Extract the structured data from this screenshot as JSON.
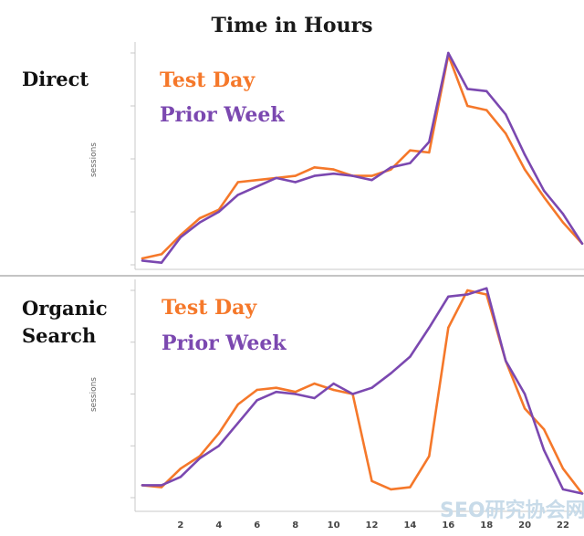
{
  "title": "Time in Hours",
  "colors": {
    "test_day": "#f5782a",
    "prior_week": "#7b48b0",
    "axis": "#c8c8c8",
    "divider": "#b0b0b0"
  },
  "watermark": "SEO研究协会网",
  "chart_data": [
    {
      "type": "line",
      "panel_label": [
        "Direct"
      ],
      "ylabel": "sessions",
      "xlabel": "",
      "xlim": [
        0,
        23
      ],
      "ylim": [
        0,
        100
      ],
      "x": [
        0,
        1,
        2,
        3,
        4,
        5,
        6,
        7,
        8,
        9,
        10,
        11,
        12,
        13,
        14,
        15,
        16,
        17,
        18,
        19,
        20,
        21,
        22,
        23
      ],
      "x_ticks": [
        2,
        4,
        6,
        8,
        10,
        12,
        14,
        16,
        18,
        20,
        22
      ],
      "series": [
        {
          "name": "Test Day",
          "values": [
            3,
            5,
            14,
            22,
            26,
            39,
            40,
            41,
            42,
            46,
            45,
            42,
            42,
            45,
            54,
            53,
            99,
            75,
            73,
            62,
            45,
            32,
            20,
            10
          ]
        },
        {
          "name": "Prior Week",
          "values": [
            2,
            1,
            13,
            20,
            25,
            33,
            37,
            41,
            39,
            42,
            43,
            42,
            40,
            46,
            48,
            58,
            100,
            83,
            82,
            71,
            52,
            35,
            24,
            10
          ]
        }
      ]
    },
    {
      "type": "line",
      "panel_label": [
        "Organic",
        "Search"
      ],
      "ylabel": "sessions",
      "xlabel": "",
      "xlim": [
        0,
        23
      ],
      "ylim": [
        0,
        100
      ],
      "x": [
        0,
        1,
        2,
        3,
        4,
        5,
        6,
        7,
        8,
        9,
        10,
        11,
        12,
        13,
        14,
        15,
        16,
        17,
        18,
        19,
        20,
        21,
        22,
        23
      ],
      "x_ticks": [
        2,
        4,
        6,
        8,
        10,
        12,
        14,
        16,
        18,
        20,
        22
      ],
      "series": [
        {
          "name": "Test Day",
          "values": [
            6,
            5,
            14,
            20,
            31,
            45,
            52,
            53,
            51,
            55,
            52,
            50,
            8,
            4,
            5,
            20,
            82,
            100,
            98,
            66,
            43,
            33,
            14,
            2
          ]
        },
        {
          "name": "Prior Week",
          "values": [
            6,
            6,
            10,
            19,
            25,
            36,
            47,
            51,
            50,
            48,
            55,
            50,
            53,
            60,
            68,
            82,
            97,
            98,
            101,
            66,
            50,
            23,
            4,
            2
          ]
        }
      ]
    }
  ]
}
